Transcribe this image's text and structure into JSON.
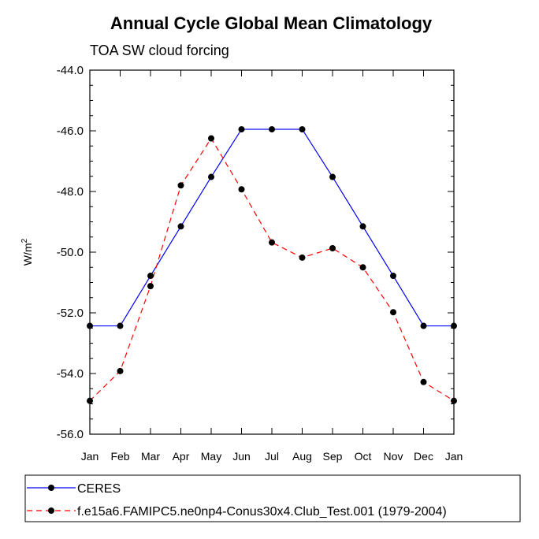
{
  "chart_data": {
    "type": "line",
    "title": "Annual Cycle Global Mean Climatology",
    "subtitle": "TOA SW cloud forcing",
    "ylabel": "W/m",
    "ylabel_superscript": "2",
    "xlabel": "",
    "categories": [
      "Jan",
      "Feb",
      "Mar",
      "Apr",
      "May",
      "Jun",
      "Jul",
      "Aug",
      "Sep",
      "Oct",
      "Nov",
      "Dec",
      "Jan"
    ],
    "ylim": [
      -56.0,
      -44.0
    ],
    "yticks": [
      -56.0,
      -54.0,
      -52.0,
      -50.0,
      -48.0,
      -46.0,
      -44.0
    ],
    "ytick_labels": [
      "-56.0",
      "-54.0",
      "-52.0",
      "-50.0",
      "-48.0",
      "-46.0",
      "-44.0"
    ],
    "series": [
      {
        "name": "CERES",
        "color": "#0000ff",
        "dash": "solid",
        "values": [
          -52.43,
          -52.43,
          -50.78,
          -49.15,
          -47.52,
          -45.95,
          -45.95,
          -45.95,
          -47.52,
          -49.15,
          -50.78,
          -52.43,
          -52.43
        ]
      },
      {
        "name": "f.e15a6.FAMIPC5.ne0np4-Conus30x4.Club_Test.001 (1979-2004)",
        "color": "#ff0000",
        "dash": "dashed",
        "values": [
          -54.9,
          -53.92,
          -51.12,
          -47.8,
          -46.25,
          -47.93,
          -49.68,
          -50.18,
          -49.87,
          -50.5,
          -51.98,
          -54.28,
          -54.9
        ]
      }
    ],
    "legend_position": "bottom"
  }
}
